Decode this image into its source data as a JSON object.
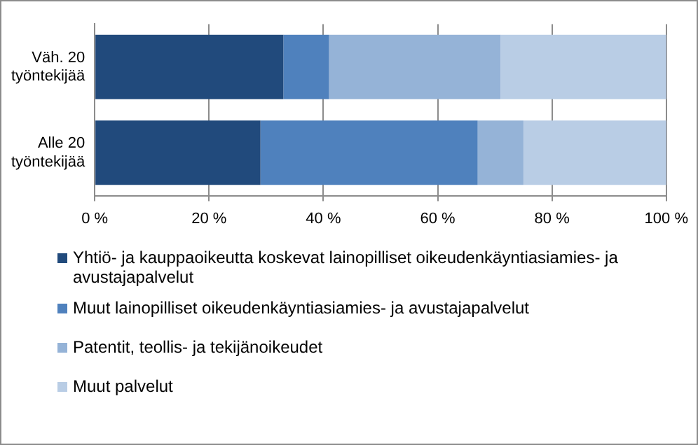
{
  "chart_data": {
    "type": "bar",
    "orientation": "horizontal",
    "stacked": true,
    "categories": [
      "Väh. 20 työntekijää",
      "Alle 20 työntekijää"
    ],
    "series": [
      {
        "name": "Yhtiö- ja kauppaoikeutta koskevat lainopilliset oikeudenkäyntiasiamies- ja avustajapalvelut",
        "color": "#214a7c",
        "values": [
          33,
          29
        ]
      },
      {
        "name": "Muut lainopilliset oikeudenkäyntiasiamies- ja avustajapalvelut",
        "color": "#4f81bd",
        "values": [
          8,
          38
        ]
      },
      {
        "name": "Patentit, teollis- ja tekijänoikeudet",
        "color": "#95b3d7",
        "values": [
          30,
          8
        ]
      },
      {
        "name": "Muut palvelut",
        "color": "#b9cde5",
        "values": [
          29,
          25
        ]
      }
    ],
    "xlim": [
      0,
      100
    ],
    "xticks": [
      {
        "value": 0,
        "label": "0 %"
      },
      {
        "value": 20,
        "label": "20 %"
      },
      {
        "value": 40,
        "label": "40 %"
      },
      {
        "value": 60,
        "label": "60 %"
      },
      {
        "value": 80,
        "label": "80 %"
      },
      {
        "value": 100,
        "label": "100 %"
      }
    ],
    "grid": "x",
    "legend": "bottom"
  }
}
